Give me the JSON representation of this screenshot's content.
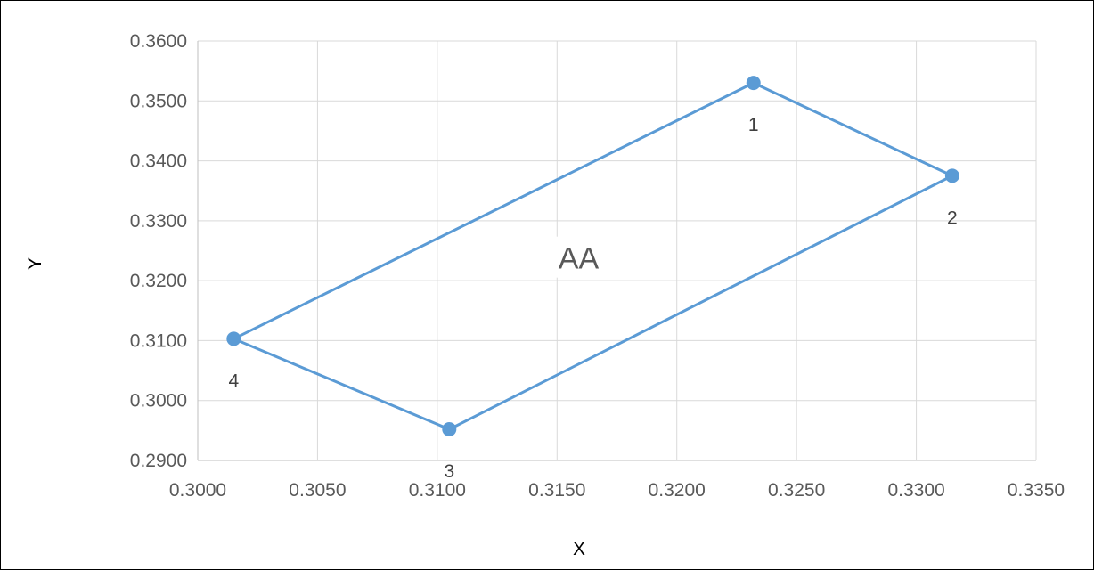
{
  "chart_data": {
    "type": "scatter",
    "xlabel": "X",
    "ylabel": "Y",
    "xlim": [
      0.3,
      0.335
    ],
    "ylim": [
      0.29,
      0.36
    ],
    "x_ticks": [
      "0.3000",
      "0.3050",
      "0.3100",
      "0.3150",
      "0.3200",
      "0.3250",
      "0.3300",
      "0.3350"
    ],
    "y_ticks": [
      "0.3600",
      "0.3500",
      "0.3400",
      "0.3300",
      "0.3200",
      "0.3100",
      "0.3000",
      "0.2900"
    ],
    "grid": true,
    "series": [
      {
        "color": "#5b9bd5",
        "closed": true,
        "points": [
          {
            "x": 0.3232,
            "y": 0.353,
            "label": "1"
          },
          {
            "x": 0.3315,
            "y": 0.3375,
            "label": "2"
          },
          {
            "x": 0.3105,
            "y": 0.2952,
            "label": "3"
          },
          {
            "x": 0.3015,
            "y": 0.3103,
            "label": "4"
          }
        ]
      }
    ],
    "annotations": [
      {
        "text": "AA",
        "x": 0.3159,
        "y": 0.322
      }
    ]
  }
}
